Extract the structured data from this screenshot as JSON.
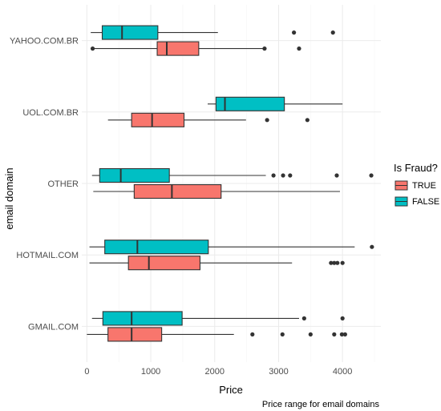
{
  "chart_data": {
    "type": "boxplot",
    "orientation": "horizontal",
    "title": "",
    "xlabel": "Price",
    "ylabel": "email domain",
    "caption": "Price range for email domains",
    "xlim": [
      -80,
      4600
    ],
    "xticks": [
      0,
      1000,
      2000,
      3000,
      4000
    ],
    "categories": [
      "GMAIL.COM",
      "HOTMAIL.COM",
      "OTHER",
      "UOL.COM.BR",
      "YAHOO.COM.BR"
    ],
    "legend": {
      "title": "Is Fraud?",
      "position": "right",
      "entries": [
        {
          "key": "TRUE",
          "label": "TRUE",
          "color": "#F8766D"
        },
        {
          "key": "FALSE",
          "label": "FALSE",
          "color": "#00BFC4"
        }
      ]
    },
    "series": [
      {
        "key": "TRUE",
        "color": "#F8766D",
        "boxes": [
          {
            "category": "GMAIL.COM",
            "whisker_low": 0,
            "q1": 330,
            "median": 700,
            "q3": 1170,
            "whisker_high": 2300,
            "outliers": [
              2590,
              3060,
              3500,
              3870,
              3990,
              4040
            ]
          },
          {
            "category": "HOTMAIL.COM",
            "whisker_low": 40,
            "q1": 650,
            "median": 970,
            "q3": 1770,
            "whisker_high": 3210,
            "outliers": [
              3820,
              3870,
              3920,
              4000
            ]
          },
          {
            "category": "OTHER",
            "whisker_low": 100,
            "q1": 740,
            "median": 1330,
            "q3": 2100,
            "whisker_high": 3960,
            "outliers": []
          },
          {
            "category": "UOL.COM.BR",
            "whisker_low": 330,
            "q1": 700,
            "median": 1020,
            "q3": 1520,
            "whisker_high": 2490,
            "outliers": [
              2820,
              3450
            ]
          },
          {
            "category": "YAHOO.COM.BR",
            "whisker_low": 110,
            "q1": 1100,
            "median": 1250,
            "q3": 1750,
            "whisker_high": 2780,
            "outliers": [
              90,
              2780,
              3320
            ]
          }
        ]
      },
      {
        "key": "FALSE",
        "color": "#00BFC4",
        "boxes": [
          {
            "category": "GMAIL.COM",
            "whisker_low": 80,
            "q1": 250,
            "median": 700,
            "q3": 1490,
            "whisker_high": 3320,
            "outliers": [
              3400,
              4000
            ]
          },
          {
            "category": "HOTMAIL.COM",
            "whisker_low": 40,
            "q1": 280,
            "median": 790,
            "q3": 1900,
            "whisker_high": 4190,
            "outliers": [
              4460
            ]
          },
          {
            "category": "OTHER",
            "whisker_low": 80,
            "q1": 200,
            "median": 530,
            "q3": 1290,
            "whisker_high": 2800,
            "outliers": [
              2920,
              3070,
              3180,
              3910,
              4450
            ]
          },
          {
            "category": "UOL.COM.BR",
            "whisker_low": 1890,
            "q1": 2020,
            "median": 2160,
            "q3": 3090,
            "whisker_high": 4000,
            "outliers": []
          },
          {
            "category": "YAHOO.COM.BR",
            "whisker_low": 60,
            "q1": 240,
            "median": 550,
            "q3": 1110,
            "whisker_high": 2050,
            "outliers": [
              3240,
              3850
            ]
          }
        ]
      }
    ]
  }
}
